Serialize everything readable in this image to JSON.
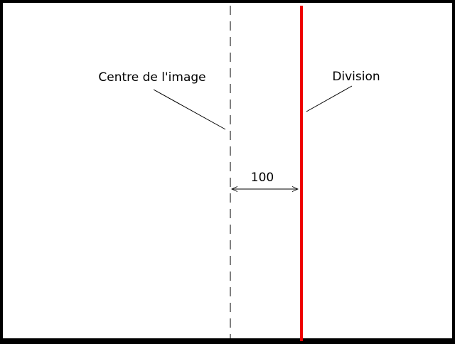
{
  "labels": {
    "centre": "Centre de l'image",
    "division": "Division",
    "distance": "100"
  },
  "colors": {
    "background": "#ffffff",
    "border": "#000000",
    "centre_line": "#000000",
    "division_line": "#ee0000",
    "annotation": "#000000"
  }
}
